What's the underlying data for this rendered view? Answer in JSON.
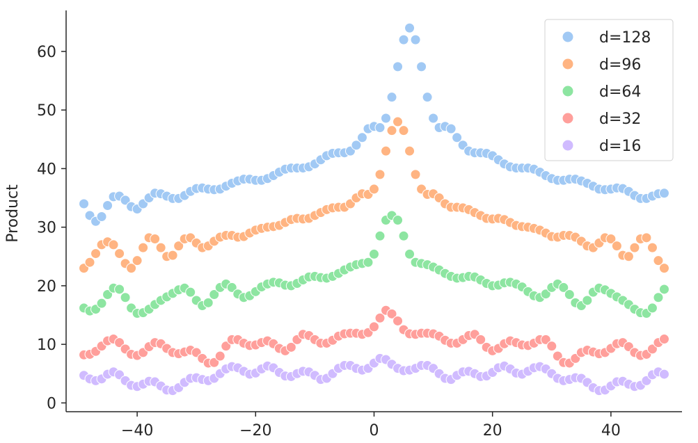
{
  "chart_data": {
    "type": "scatter",
    "title": "",
    "xlabel": "",
    "ylabel": "Product",
    "xlim": [
      -52,
      52
    ],
    "ylim": [
      -1.5,
      67
    ],
    "xticks": [
      -40,
      -20,
      0,
      20,
      40
    ],
    "xtick_labels": [
      "−40",
      "−20",
      "0",
      "20",
      "40"
    ],
    "yticks": [
      0,
      10,
      20,
      30,
      40,
      50,
      60
    ],
    "ytick_labels": [
      "0",
      "10",
      "20",
      "30",
      "40",
      "50",
      "60"
    ],
    "grid": false,
    "legend_position": "upper right",
    "x_domain": [
      -49,
      49
    ],
    "series": [
      {
        "name": "d=128",
        "color": "#a1c9f4",
        "values": [
          34,
          32,
          31,
          31.8,
          33.7,
          35.2,
          35.3,
          34.6,
          33.5,
          33.1,
          34,
          35,
          35.8,
          35.7,
          35.3,
          34.9,
          34.9,
          35.4,
          36.1,
          36.6,
          36.7,
          36.5,
          36.4,
          36.5,
          37,
          37.5,
          37.9,
          38.2,
          38.2,
          38,
          38,
          38.3,
          38.8,
          39.4,
          39.9,
          40.1,
          40.1,
          40.1,
          40.3,
          40.8,
          41.5,
          42.2,
          42.6,
          42.7,
          42.7,
          43,
          44,
          45.3,
          46.8,
          47.2,
          47,
          48.6,
          52.2,
          57.4,
          62,
          64,
          62,
          57.4,
          52.2,
          48.6,
          47,
          47.2,
          46.8,
          45.3,
          44,
          43,
          42.7,
          42.7,
          42.6,
          42.2,
          41.5,
          40.8,
          40.3,
          40.1,
          40.1,
          40.1,
          39.9,
          39.4,
          38.8,
          38.3,
          38,
          38,
          38.2,
          38.2,
          37.9,
          37.5,
          37,
          36.5,
          36.4,
          36.5,
          36.7,
          36.6,
          36.1,
          35.4,
          34.9,
          34.9,
          35.3,
          35.7,
          35.8
        ]
      },
      {
        "name": "d=96",
        "color": "#ffb482",
        "values": [
          23,
          24,
          25.5,
          27,
          27.5,
          27,
          25.5,
          23.8,
          23,
          24.3,
          26.5,
          28.2,
          28,
          26.5,
          25,
          25.2,
          26.8,
          28,
          28.2,
          27.3,
          26.5,
          26.8,
          27.6,
          28.3,
          28.6,
          28.6,
          28.3,
          28.4,
          29,
          29.5,
          29.8,
          30,
          30.1,
          30.3,
          30.8,
          31.3,
          31.5,
          31.4,
          31.5,
          32,
          32.5,
          33,
          33.3,
          33.4,
          33.4,
          34,
          35,
          35.7,
          35.6,
          36.5,
          39,
          43,
          46.5,
          48,
          46.5,
          43,
          39,
          36.5,
          35.6,
          35.7,
          35,
          34,
          33.4,
          33.4,
          33.3,
          33,
          32.5,
          32,
          31.5,
          31.4,
          31.5,
          31.3,
          30.8,
          30.3,
          30.1,
          30,
          29.8,
          29.5,
          29,
          28.4,
          28.3,
          28.6,
          28.6,
          28.3,
          27.6,
          26.8,
          26.5,
          27.3,
          28.2,
          28,
          26.8,
          25.2,
          25,
          26.5,
          28,
          28.2,
          26.5,
          24.3,
          23
        ]
      },
      {
        "name": "d=64",
        "color": "#8de5a1",
        "values": [
          16.2,
          15.7,
          16,
          17,
          18.5,
          19.6,
          19.4,
          18,
          16.2,
          15.3,
          15.4,
          16,
          16.8,
          17.5,
          18.1,
          18.7,
          19.3,
          19.6,
          18.9,
          17.5,
          16.6,
          17.1,
          18.5,
          19.7,
          20.3,
          19.7,
          18.6,
          18,
          18.3,
          19,
          19.8,
          20.3,
          20.6,
          20.5,
          20.1,
          20,
          20.4,
          21,
          21.5,
          21.6,
          21.4,
          21.3,
          21.6,
          22.1,
          22.7,
          23.2,
          23.6,
          23.8,
          24,
          25.4,
          28.5,
          31.2,
          32,
          31.2,
          28.5,
          25.4,
          24,
          23.8,
          23.6,
          23.2,
          22.7,
          22.1,
          21.6,
          21.3,
          21.4,
          21.6,
          21.5,
          21,
          20.4,
          20,
          20.1,
          20.5,
          20.6,
          20.3,
          19.8,
          19,
          18.3,
          18,
          18.6,
          19.7,
          20.3,
          19.7,
          18.5,
          17.1,
          16.6,
          17.5,
          18.9,
          19.6,
          19.3,
          18.7,
          18.1,
          17.5,
          16.8,
          16,
          15.4,
          15.3,
          16.2,
          18,
          19.4
        ]
      },
      {
        "name": "d=32",
        "color": "#ff9f9b",
        "values": [
          8.2,
          8.3,
          8.8,
          9.7,
          10.6,
          10.9,
          10.3,
          9.2,
          8.3,
          8.1,
          8.6,
          9.6,
          10.3,
          10.1,
          9.3,
          8.6,
          8.4,
          8.7,
          9,
          8.6,
          7.6,
          6.8,
          6.9,
          8,
          9.7,
          10.8,
          10.8,
          10.2,
          9.8,
          9.9,
          10.3,
          10.6,
          10.1,
          9.3,
          8.9,
          9.5,
          10.8,
          11.7,
          11.5,
          10.8,
          10.2,
          10.2,
          10.7,
          11.4,
          11.8,
          11.9,
          11.9,
          11.7,
          12,
          13,
          14.5,
          15.8,
          15.2,
          14,
          12.5,
          11.8,
          11.7,
          11.9,
          11.9,
          11.8,
          11.4,
          10.7,
          10.2,
          10.2,
          10.8,
          11.5,
          11.7,
          10.8,
          9.5,
          8.9,
          9.3,
          10.1,
          10.6,
          10.3,
          9.9,
          9.8,
          10.2,
          10.8,
          10.8,
          9.7,
          8,
          6.9,
          6.8,
          7.6,
          8.6,
          9,
          8.7,
          8.4,
          8.6,
          9.3,
          10.1,
          10.3,
          9.6,
          8.6,
          8.1,
          8.3,
          9.2,
          10.3,
          10.9
        ]
      },
      {
        "name": "d=16",
        "color": "#d0bbff",
        "values": [
          4.7,
          4.1,
          3.8,
          4.1,
          4.9,
          5.3,
          4.8,
          3.8,
          3,
          2.8,
          3.2,
          3.7,
          3.6,
          2.9,
          2.2,
          2.1,
          2.6,
          3.5,
          4.2,
          4.3,
          4,
          3.8,
          4.2,
          5,
          5.8,
          6.2,
          6,
          5.4,
          4.9,
          5.1,
          5.8,
          6.3,
          6,
          5.2,
          4.6,
          4.5,
          5,
          5.4,
          5.3,
          4.7,
          4,
          4.2,
          5,
          5.9,
          6.4,
          6.4,
          5.9,
          5.6,
          5.9,
          6.8,
          7.6,
          7.4,
          6.6,
          5.9,
          5.5,
          5.6,
          5.9,
          6.4,
          6.4,
          5.9,
          5,
          4.2,
          4,
          4.7,
          5.3,
          5.4,
          5,
          4.5,
          4.6,
          5.2,
          6,
          6.3,
          5.8,
          5.1,
          4.9,
          5.4,
          6,
          6.2,
          5.8,
          5,
          4.2,
          3.8,
          4,
          4.3,
          4.2,
          3.5,
          2.6,
          2.1,
          2.2,
          2.9,
          3.6,
          3.7,
          3.2,
          2.8,
          3,
          3.8,
          4.8,
          5.3,
          4.9
        ]
      }
    ]
  }
}
